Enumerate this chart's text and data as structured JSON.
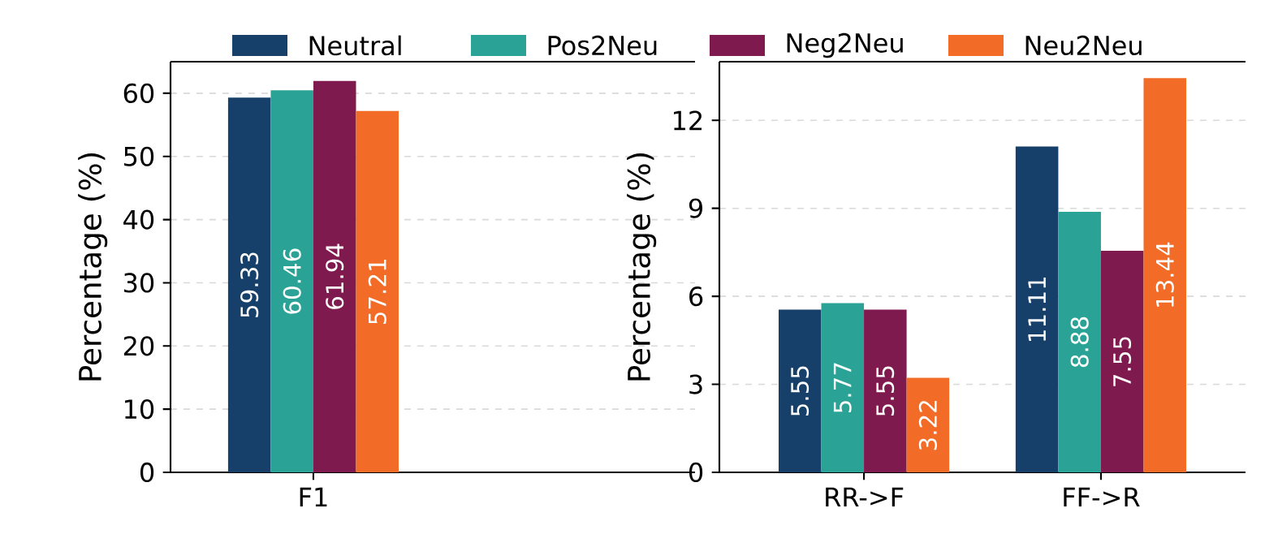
{
  "chart_data": [
    {
      "type": "bar",
      "ylabel": "Percentage (%)",
      "categories": [
        "F1"
      ],
      "ylim": [
        0,
        65
      ],
      "yticks": [
        0,
        10,
        20,
        30,
        40,
        50,
        60
      ],
      "grid": "y",
      "legend": "top",
      "data_labels": true,
      "series": [
        {
          "name": "Neutral",
          "color": "#164069",
          "values": [
            59.33
          ]
        },
        {
          "name": "Pos2Neu",
          "color": "#2aa396",
          "values": [
            60.46
          ]
        },
        {
          "name": "Neg2Neu",
          "color": "#7f1a4f",
          "values": [
            61.94
          ]
        },
        {
          "name": "Neu2Neu",
          "color": "#f26c28",
          "values": [
            57.21
          ]
        }
      ]
    },
    {
      "type": "bar",
      "ylabel": "Percentage (%)",
      "categories": [
        "RR->F",
        "FF->R"
      ],
      "ylim": [
        0,
        14
      ],
      "yticks": [
        0,
        3,
        6,
        9,
        12
      ],
      "grid": "y",
      "data_labels": true,
      "series": [
        {
          "color": "#164069",
          "values": [
            5.55,
            11.11
          ]
        },
        {
          "color": "#2aa396",
          "values": [
            5.77,
            8.88
          ]
        },
        {
          "color": "#7f1a4f",
          "values": [
            5.55,
            7.55
          ]
        },
        {
          "color": "#f26c28",
          "values": [
            3.22,
            13.44
          ]
        }
      ]
    }
  ]
}
